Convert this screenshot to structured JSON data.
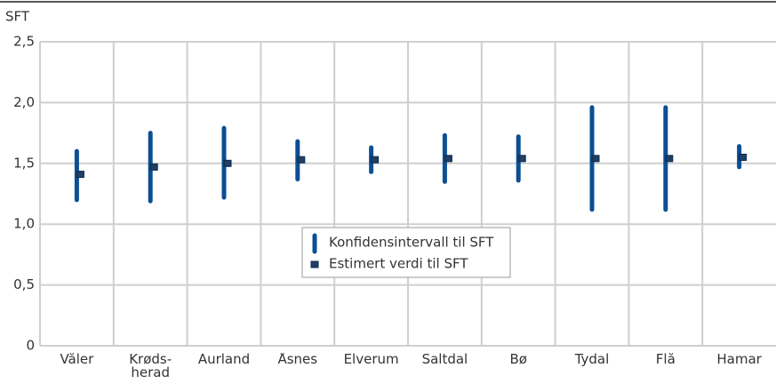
{
  "chart_data": {
    "type": "errorbar",
    "y_label": "SFT",
    "categories": [
      "Våler",
      "Krøds-herad",
      "Aurland",
      "Åsnes",
      "Elverum",
      "Saltdal",
      "Bø",
      "Tydal",
      "Flå",
      "Hamar"
    ],
    "series": [
      {
        "name": "Konfidensintervall til SFT",
        "color": "#0b4f94",
        "low": [
          1.2,
          1.19,
          1.22,
          1.37,
          1.43,
          1.35,
          1.36,
          1.12,
          1.12,
          1.47
        ],
        "high": [
          1.6,
          1.75,
          1.79,
          1.68,
          1.63,
          1.73,
          1.72,
          1.96,
          1.96,
          1.64
        ]
      },
      {
        "name": "Estimert verdi til SFT",
        "color": "#1f3f66",
        "values": [
          1.41,
          1.47,
          1.5,
          1.53,
          1.53,
          1.54,
          1.54,
          1.54,
          1.54,
          1.55
        ]
      }
    ],
    "ylim": [
      0,
      2.5
    ],
    "yticks": [
      0,
      {
        "value": 0.5,
        "label": "0,5"
      },
      {
        "value": 1,
        "label": "1,0"
      },
      {
        "value": 1.5,
        "label": "1,5"
      },
      {
        "value": 2,
        "label": "2,0"
      },
      {
        "value": 2.5,
        "label": "2,5"
      }
    ],
    "grid": true,
    "legend": "center"
  }
}
